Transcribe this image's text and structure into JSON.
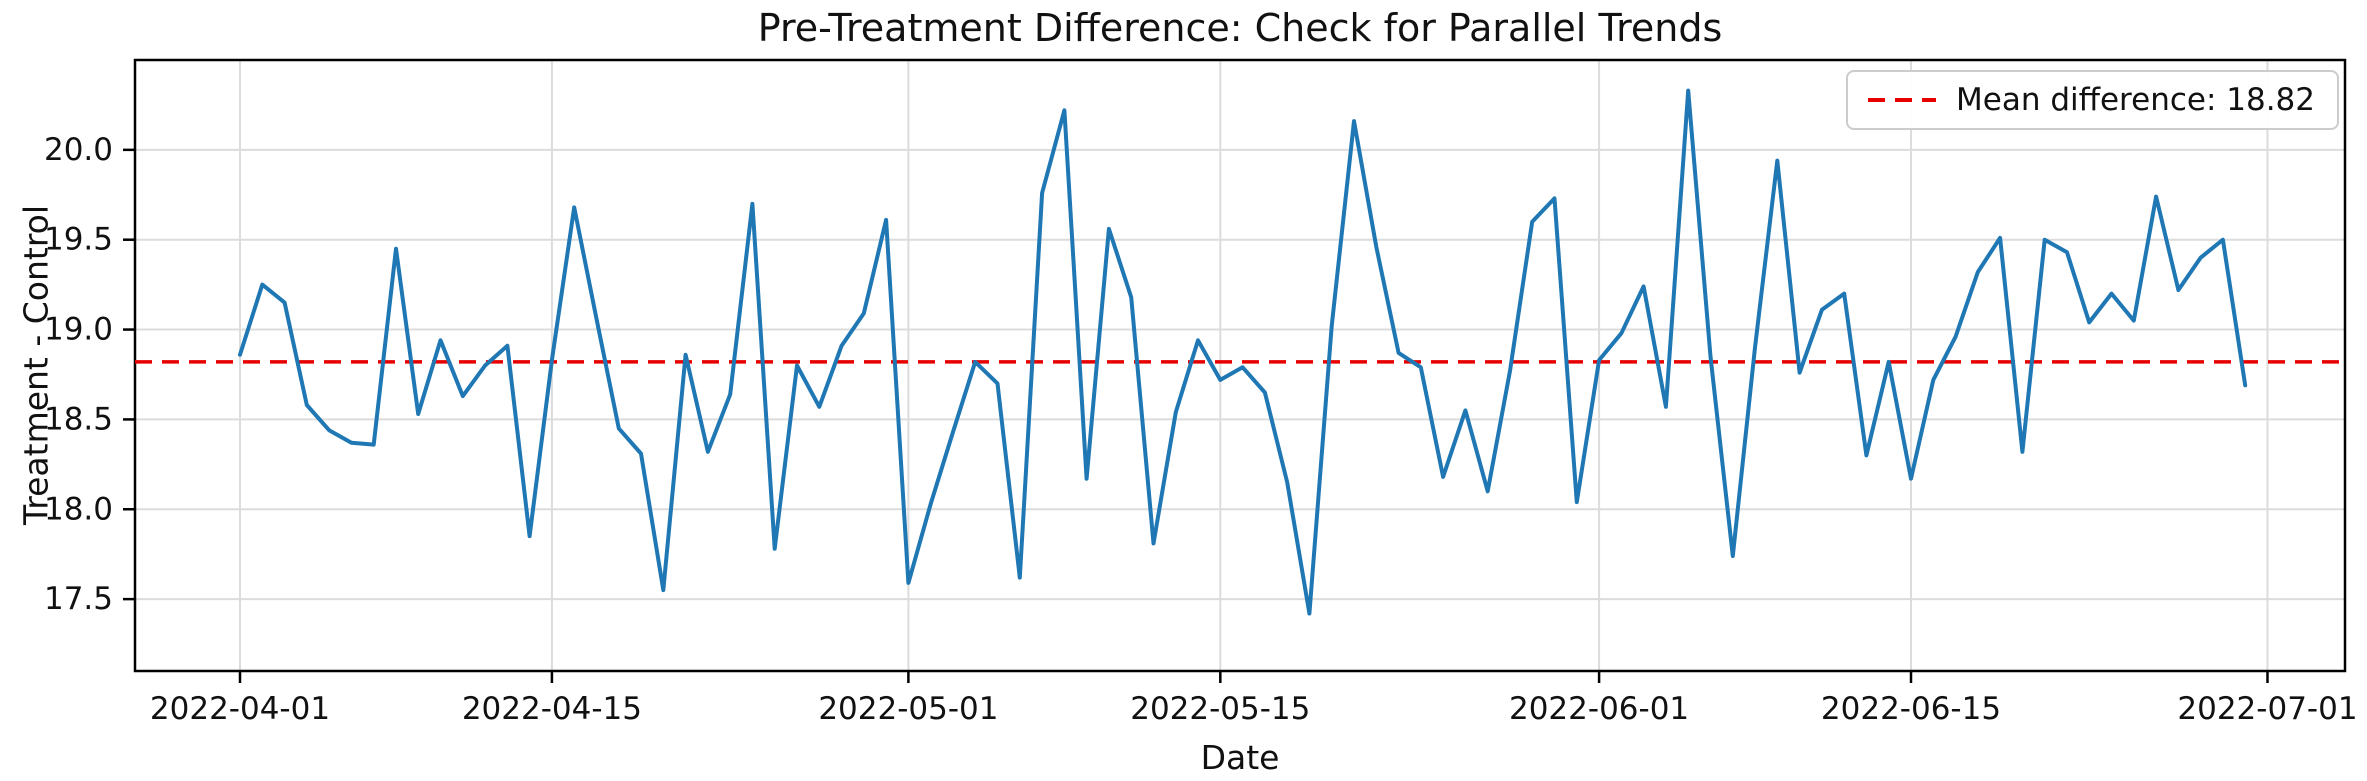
{
  "chart_data": {
    "type": "line",
    "title": "Pre-Treatment Difference: Check for Parallel Trends",
    "xlabel": "Date",
    "ylabel": "Treatment - Control",
    "legend_label": "Mean difference: 18.82",
    "legend_position": "upper right",
    "grid": true,
    "mean": 18.82,
    "start_date": "2022-04-01",
    "end_date": "2022-06-30",
    "frequency": "daily",
    "x_tick_labels": [
      "2022-04-01",
      "2022-04-15",
      "2022-05-01",
      "2022-05-15",
      "2022-06-01",
      "2022-06-15",
      "2022-07-01"
    ],
    "x_tick_days": [
      0,
      14,
      30,
      44,
      61,
      75,
      91
    ],
    "y_ticks": [
      17.5,
      18.0,
      18.5,
      19.0,
      19.5,
      20.0
    ],
    "ylim": [
      17.1,
      20.5
    ],
    "series_name": "Treatment - Control difference",
    "values": [
      18.86,
      19.25,
      19.15,
      18.58,
      18.44,
      18.37,
      18.36,
      19.45,
      18.53,
      18.94,
      18.63,
      18.8,
      18.91,
      17.85,
      18.83,
      19.68,
      19.06,
      18.45,
      18.31,
      17.55,
      18.86,
      18.32,
      18.64,
      19.7,
      17.78,
      18.8,
      18.57,
      18.91,
      19.09,
      19.61,
      17.59,
      18.03,
      18.43,
      18.82,
      18.7,
      17.62,
      19.76,
      20.22,
      18.17,
      19.56,
      19.18,
      17.81,
      18.54,
      18.94,
      18.72,
      18.79,
      18.65,
      18.15,
      17.42,
      19.02,
      20.16,
      19.46,
      18.87,
      18.79,
      18.18,
      18.55,
      18.1,
      18.77,
      19.6,
      19.73,
      18.04,
      18.83,
      18.98,
      19.24,
      18.57,
      20.33,
      18.85,
      17.74,
      18.9,
      19.94,
      18.76,
      19.11,
      19.2,
      18.3,
      18.82,
      18.17,
      18.72,
      18.96,
      19.32,
      19.51,
      18.32,
      19.5,
      19.43,
      19.04,
      19.2,
      19.05,
      19.74,
      19.22,
      19.4,
      19.5,
      18.69
    ],
    "colors": {
      "line": "#1f77b4",
      "mean_line": "#e60000",
      "grid": "#dcdcdc",
      "spine": "#000000",
      "text": "#111111"
    }
  }
}
